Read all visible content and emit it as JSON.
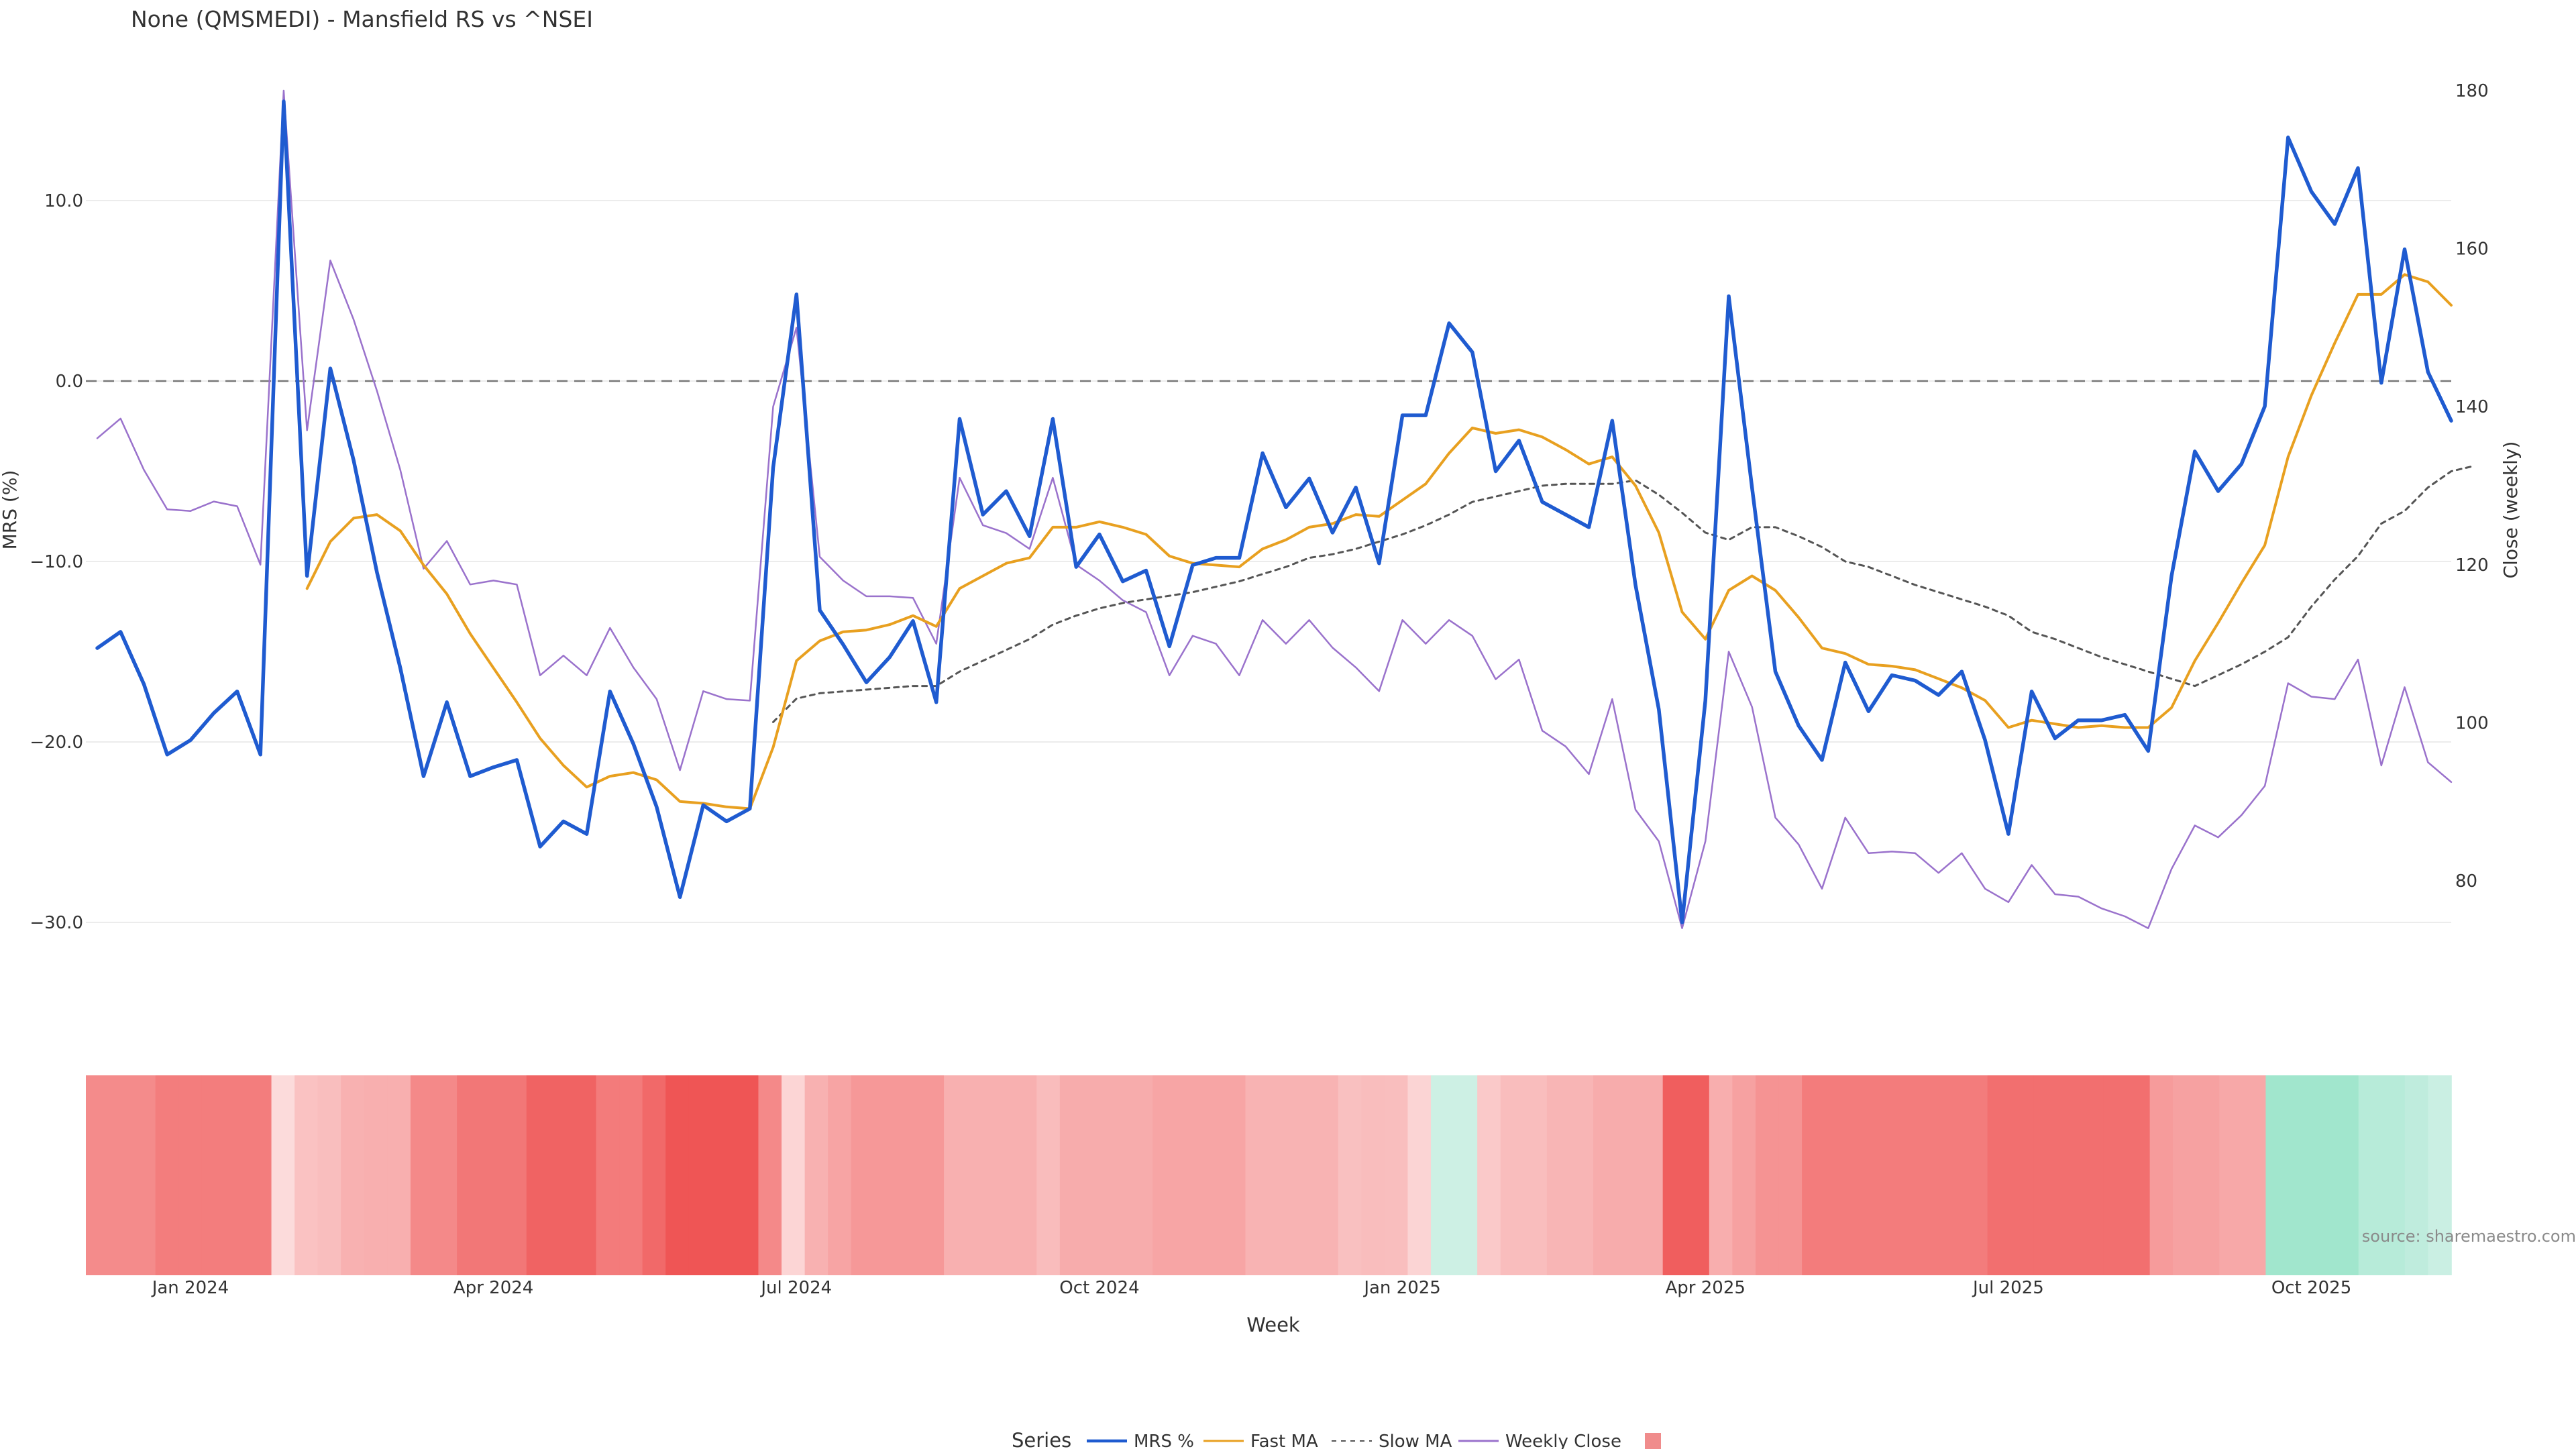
{
  "chart_data": {
    "type": "line",
    "title": "None (QMSMEDI) - Mansfield RS vs ^NSEI",
    "xlabel": "Week",
    "ylabel_left": "MRS (%)",
    "ylabel_right": "Close (weekly)",
    "ylim_left": [
      -33,
      16
    ],
    "ylim_right": [
      73,
      180
    ],
    "yticks_left": [
      10,
      0,
      -10,
      -20,
      -30
    ],
    "yticks_left_labels": [
      "10.0",
      "0.0",
      "−10.0",
      "−20.0",
      "−30.0"
    ],
    "yticks_right": [
      180,
      160,
      140,
      120,
      100,
      80
    ],
    "yticks_right_labels": [
      "180",
      "160",
      "140",
      "120",
      "100",
      "80"
    ],
    "x_tick_labels": [
      "Jan 2024",
      "Apr 2024",
      "Jul 2024",
      "Oct 2024",
      "Jan 2025",
      "Apr 2025",
      "Jul 2025",
      "Oct 2025"
    ],
    "x_tick_weeks": [
      4,
      17,
      30,
      43,
      56,
      69,
      82,
      95
    ],
    "zero_line": 0,
    "series": [
      {
        "name": "MRS %",
        "axis": "left",
        "color": "#1f5bd0",
        "values": [
          -14.8,
          -13.9,
          -16.8,
          -20.7,
          -19.9,
          -18.4,
          -17.2,
          -20.7,
          15.5,
          -10.8,
          0.7,
          -4.4,
          -10.6,
          -15.9,
          -21.9,
          -17.8,
          -21.9,
          -21.4,
          -21,
          -25.8,
          -24.4,
          -25.1,
          -17.2,
          -20.1,
          -23.6,
          -28.6,
          -23.5,
          -24.4,
          -23.7,
          -4.8,
          4.8,
          -12.7,
          -14.6,
          -16.7,
          -15.3,
          -13.3,
          -17.8,
          -2.1,
          -7.4,
          -6.1,
          -8.6,
          -2.1,
          -10.3,
          -8.5,
          -11.1,
          -10.5,
          -14.7,
          -10.2,
          -9.8,
          -9.8,
          -4,
          -7,
          -5.4,
          -8.4,
          -5.9,
          -10.1,
          -1.9,
          -1.9,
          3.2,
          1.6,
          -5,
          -3.3,
          -6.7,
          -7.4,
          -8.1,
          -2.2,
          -11.3,
          -18.2,
          -30,
          -17.7,
          4.7,
          -5.9,
          -16.1,
          -19.1,
          -21,
          -15.6,
          -18.3,
          -16.3,
          -16.6,
          -17.4,
          -16.1,
          -19.9,
          -25.1,
          -17.2,
          -19.8,
          -18.8,
          -18.8,
          -18.5,
          -20.5,
          -10.8,
          -3.9,
          -6.1,
          -4.6,
          -1.4,
          13.5,
          10.5,
          8.7,
          11.8,
          -0.1,
          7.3,
          0.5,
          -2.2
        ]
      },
      {
        "name": "Fast MA",
        "axis": "left",
        "color": "#e8a020",
        "values": [
          null,
          null,
          null,
          null,
          null,
          null,
          null,
          null,
          null,
          -11.5,
          -8.9,
          -7.6,
          -7.4,
          -8.3,
          -10.2,
          -11.8,
          -14.0,
          -15.9,
          -17.8,
          -19.8,
          -21.3,
          -22.5,
          -21.9,
          -21.7,
          -22.1,
          -23.3,
          -23.4,
          -23.6,
          -23.7,
          -20.3,
          -15.5,
          -14.4,
          -13.9,
          -13.8,
          -13.5,
          -13.0,
          -13.6,
          -11.5,
          -10.8,
          -10.1,
          -9.8,
          -8.1,
          -8.1,
          -7.8,
          -8.1,
          -8.5,
          -9.7,
          -10.1,
          -10.2,
          -10.3,
          -9.3,
          -8.8,
          -8.1,
          -7.9,
          -7.4,
          -7.5,
          -6.6,
          -5.7,
          -4.0,
          -2.6,
          -2.9,
          -2.7,
          -3.1,
          -3.8,
          -4.6,
          -4.2,
          -5.8,
          -8.4,
          -12.8,
          -14.3,
          -11.6,
          -10.8,
          -11.6,
          -13.1,
          -14.8,
          -15.1,
          -15.7,
          -15.8,
          -16.0,
          -16.5,
          -17.0,
          -17.7,
          -19.2,
          -18.8,
          -19.0,
          -19.2,
          -19.1,
          -19.2,
          -19.2,
          -18.1,
          -15.5,
          -13.4,
          -11.2,
          -9.1,
          -4.2,
          -0.8,
          2.1,
          4.8,
          4.8,
          5.9,
          5.5,
          4.2
        ]
      },
      {
        "name": "Slow MA",
        "axis": "left",
        "color": "#555555",
        "dashed": true,
        "values": [
          null,
          null,
          null,
          null,
          null,
          null,
          null,
          null,
          null,
          null,
          null,
          null,
          null,
          null,
          null,
          null,
          null,
          null,
          null,
          null,
          null,
          null,
          null,
          null,
          null,
          null,
          null,
          null,
          null,
          -18.9,
          -17.6,
          -17.3,
          -17.2,
          -17.1,
          -17.0,
          -16.9,
          -16.9,
          -16.1,
          -15.5,
          -14.9,
          -14.3,
          -13.5,
          -13.0,
          -12.6,
          -12.3,
          -12.1,
          -11.9,
          -11.7,
          -11.4,
          -11.1,
          -10.7,
          -10.3,
          -9.8,
          -9.6,
          -9.3,
          -8.9,
          -8.5,
          -8.0,
          -7.4,
          -6.7,
          -6.4,
          -6.1,
          -5.8,
          -5.7,
          -5.7,
          -5.7,
          -5.5,
          -6.3,
          -7.3,
          -8.4,
          -8.8,
          -8.1,
          -8.1,
          -8.6,
          -9.2,
          -10.0,
          -10.3,
          -10.8,
          -11.3,
          -11.7,
          -12.1,
          -12.5,
          -13.0,
          -13.9,
          -14.3,
          -14.8,
          -15.3,
          -15.7,
          -16.1,
          -16.5,
          -16.9,
          -16.3,
          -15.7,
          -15.0,
          -14.2,
          -12.5,
          -11.0,
          -9.7,
          -7.9,
          -7.2,
          -5.9,
          -5.0,
          -4.7
        ]
      },
      {
        "name": "Weekly Close",
        "axis": "right",
        "color": "#9a72cc",
        "values": [
          136,
          138.5,
          132,
          127,
          126.8,
          128,
          127.4,
          120,
          180,
          137,
          158.5,
          151,
          142,
          132,
          119.5,
          123,
          117.5,
          118,
          117.5,
          106,
          108.5,
          106,
          112,
          107,
          103,
          94,
          104,
          103,
          102.8,
          140,
          150,
          121,
          118,
          116,
          116,
          115.8,
          110,
          131,
          125,
          124,
          122,
          131,
          120,
          118,
          115.5,
          114,
          106,
          111,
          110,
          106,
          113,
          110,
          113,
          109.5,
          107,
          104,
          113,
          110,
          113,
          111,
          105.5,
          108,
          99,
          97,
          93.5,
          103,
          89,
          85,
          74,
          85,
          109,
          102,
          88,
          84.6,
          79,
          88,
          83.5,
          83.7,
          83.5,
          81,
          83.5,
          79,
          77.3,
          82,
          78.3,
          78,
          76.5,
          75.5,
          74,
          81.5,
          87,
          85.5,
          88.3,
          92,
          105,
          103.3,
          103,
          108,
          94.6,
          104.5,
          95,
          92.5
        ]
      }
    ],
    "heatmap": {
      "values": [
        -17.8,
        -17.8,
        -17.8,
        -20.7,
        -20.7,
        -20.7,
        -20.7,
        -20.7,
        -1.9,
        -6.9,
        -7.7,
        -10.2,
        -10.6,
        -10.6,
        -18.2,
        -18.2,
        -21.9,
        -21.9,
        -21.9,
        -25.8,
        -25.8,
        -25.8,
        -21,
        -21,
        -24.6,
        -28.6,
        -28.6,
        -28.6,
        -28.6,
        -18.2,
        -3,
        -10.2,
        -12.8,
        -15.3,
        -15.3,
        -15.3,
        -15.3,
        -10.5,
        -10.5,
        -10.5,
        -10.5,
        -8,
        -11.3,
        -11.3,
        -11.3,
        -11.3,
        -12.6,
        -12.6,
        -12.6,
        -12.6,
        -9.8,
        -9.8,
        -9.8,
        -9.8,
        -7.2,
        -7.8,
        -7.7,
        -3.3,
        1.6,
        1.6,
        -5.4,
        -7.9,
        -7.9,
        -9.5,
        -9.5,
        -11.3,
        -11.3,
        -11.3,
        -26.9,
        -26.9,
        -10.9,
        -13.5,
        -16.3,
        -16.3,
        -20.8,
        -20.8,
        -20.8,
        -20.8,
        -20.8,
        -20.8,
        -20.8,
        -20.8,
        -23.4,
        -23.4,
        -23.4,
        -23.4,
        -23.4,
        -23.4,
        -23.4,
        -14.7,
        -13.5,
        -13.5,
        -12.1,
        -12.1,
        6.3,
        6.3,
        6.3,
        6.3,
        3.9,
        3.9,
        3.1,
        1.9
      ]
    },
    "legend": {
      "title": "Series",
      "position": "bottom-center",
      "entries": [
        "MRS %",
        "Fast MA",
        "Slow MA",
        "Weekly Close",
        ""
      ]
    },
    "source": "source: sharemaestro.com"
  }
}
